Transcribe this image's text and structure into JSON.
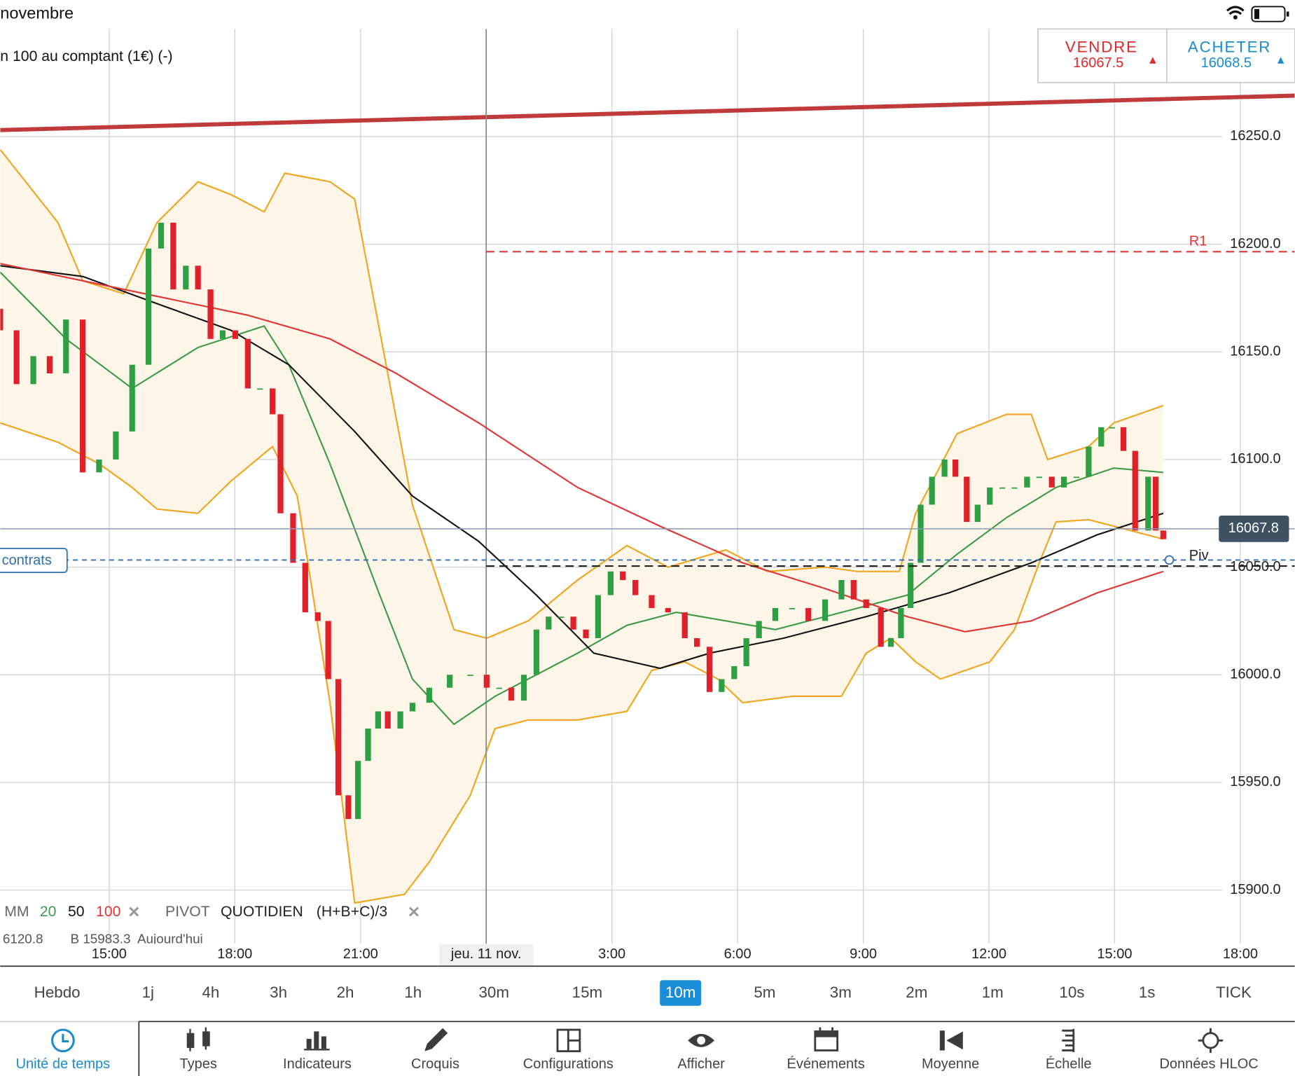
{
  "status_bar": {
    "title": "novembre"
  },
  "instrument": {
    "name": "n 100 au comptant (1€) (-)"
  },
  "trade": {
    "sell": {
      "label": "VENDRE",
      "price": "16067.5"
    },
    "buy": {
      "label": "ACHETER",
      "price": "16068.5"
    }
  },
  "chart_data": {
    "type": "candlestick",
    "up_color": "#2ea043",
    "down_color": "#e0202a",
    "grid": true,
    "xlim": [
      12.4,
      43.3
    ],
    "ylim": [
      15875,
      16300
    ],
    "xticks": [
      {
        "value": 15,
        "label": "15:00"
      },
      {
        "value": 18,
        "label": "18:00"
      },
      {
        "value": 21,
        "label": "21:00"
      },
      {
        "value": 24,
        "label": "jeu. 11 nov."
      },
      {
        "value": 27,
        "label": "3:00"
      },
      {
        "value": 30,
        "label": "6:00"
      },
      {
        "value": 33,
        "label": "9:00"
      },
      {
        "value": 36,
        "label": "12:00"
      },
      {
        "value": 39,
        "label": "15:00"
      },
      {
        "value": 42,
        "label": "18:00"
      }
    ],
    "yticks": [
      {
        "value": 15900,
        "label": "15900.0"
      },
      {
        "value": 15950,
        "label": "15950.0"
      },
      {
        "value": 16000,
        "label": "16000.0"
      },
      {
        "value": 16050,
        "label": "16050.0"
      },
      {
        "value": 16100,
        "label": "16100.0"
      },
      {
        "value": 16150,
        "label": "16150.0"
      },
      {
        "value": 16200,
        "label": "16200.0"
      },
      {
        "value": 16250,
        "label": "16250.0"
      }
    ],
    "x": [
      12.4,
      12.79,
      13.19,
      13.58,
      13.97,
      14.37,
      14.76,
      15.16,
      15.55,
      15.94,
      16.24,
      16.53,
      16.83,
      17.12,
      17.42,
      17.71,
      18.01,
      18.31,
      18.6,
      18.9,
      19.09,
      19.39,
      19.68,
      19.98,
      20.23,
      20.47,
      20.71,
      20.94,
      21.18,
      21.42,
      21.65,
      21.95,
      22.24,
      22.64,
      23.13,
      23.62,
      24.01,
      24.31,
      24.6,
      24.9,
      25.2,
      25.49,
      25.79,
      26.08,
      26.38,
      26.67,
      26.97,
      27.26,
      27.56,
      27.95,
      28.34,
      28.74,
      29.03,
      29.33,
      29.62,
      29.92,
      30.21,
      30.51,
      30.9,
      31.3,
      31.69,
      32.09,
      32.48,
      32.77,
      33.07,
      33.42,
      33.66,
      33.9,
      34.13,
      34.37,
      34.64,
      34.94,
      35.2,
      35.47,
      35.73,
      36.02,
      36.32,
      36.61,
      36.91,
      37.2,
      37.5,
      37.79,
      38.09,
      38.38,
      38.68,
      38.94,
      39.21,
      39.49,
      39.8,
      39.98,
      40.16
    ],
    "open": [
      16170,
      16160,
      16135,
      16148,
      16140,
      16165,
      16094,
      16100,
      16113,
      16144,
      16198,
      16210,
      16179,
      16190,
      16179,
      16156,
      16160,
      16156,
      16133,
      16133,
      16121,
      16075,
      16052,
      16029,
      16025,
      15998,
      15944,
      15933,
      15960,
      15975,
      15983,
      15975,
      15983,
      15987,
      15994,
      16000,
      16000,
      15994,
      15994,
      15988,
      16000,
      16021,
      16027,
      16027,
      16021,
      16017,
      16037,
      16048,
      16044,
      16037,
      16031,
      16029,
      16017,
      16013,
      15992,
      15998,
      16004,
      16017,
      16025,
      16031,
      16031,
      16025,
      16035,
      16044,
      16035,
      16031,
      16013,
      16017,
      16031,
      16052,
      16079,
      16092,
      16100,
      16092,
      16071,
      16079,
      16087,
      16087,
      16087,
      16092,
      16092,
      16087,
      16092,
      16092,
      16106,
      16115,
      16115,
      16104,
      16067,
      16092,
      16067
    ],
    "close": [
      16160,
      16135,
      16148,
      16140,
      16165,
      16094,
      16100,
      16113,
      16144,
      16198,
      16210,
      16179,
      16190,
      16179,
      16156,
      16160,
      16156,
      16133,
      16133,
      16121,
      16075,
      16052,
      16029,
      16025,
      15998,
      15944,
      15933,
      15960,
      15975,
      15983,
      15975,
      15983,
      15987,
      15994,
      16000,
      16000,
      15994,
      15994,
      15988,
      16000,
      16021,
      16027,
      16027,
      16021,
      16017,
      16037,
      16048,
      16044,
      16037,
      16031,
      16029,
      16017,
      16013,
      15992,
      15998,
      16004,
      16017,
      16025,
      16031,
      16031,
      16025,
      16035,
      16044,
      16035,
      16031,
      16013,
      16017,
      16031,
      16052,
      16079,
      16092,
      16100,
      16092,
      16071,
      16079,
      16087,
      16087,
      16087,
      16092,
      16092,
      16087,
      16092,
      16092,
      16106,
      16115,
      16115,
      16104,
      16067,
      16092,
      16067,
      16063
    ],
    "series": [
      {
        "name": "20",
        "color": "#3d9a4a",
        "x": [
          12.4,
          13.97,
          15.55,
          17.12,
          18.7,
          19.29,
          20.27,
          21.46,
          22.24,
          23.23,
          24.21,
          25.2,
          26.18,
          27.36,
          28.54,
          29.72,
          30.9,
          32.09,
          33.27,
          34.05,
          35.24,
          36.42,
          37.6,
          38.98,
          40.16
        ],
        "values": [
          16187,
          16156,
          16133,
          16152,
          16162,
          16144,
          16098,
          16037,
          15998,
          15977,
          15990,
          16000,
          16010,
          16023,
          16029,
          16025,
          16021,
          16027,
          16033,
          16037,
          16056,
          16073,
          16087,
          16096,
          16094
        ]
      },
      {
        "name": "50",
        "color": "#111111",
        "x": [
          12.4,
          14.37,
          16.34,
          17.91,
          19.29,
          20.86,
          22.24,
          23.82,
          25.2,
          26.57,
          28.15,
          29.33,
          31.1,
          33.07,
          35.04,
          37.01,
          38.58,
          40.16
        ],
        "values": [
          16190,
          16185,
          16171,
          16160,
          16144,
          16113,
          16083,
          16062,
          16037,
          16010,
          16003,
          16010,
          16017,
          16027,
          16038,
          16052,
          16065,
          16075
        ]
      },
      {
        "name": "100",
        "color": "#e03535",
        "x": [
          12.4,
          14.37,
          16.34,
          18.31,
          20.27,
          21.85,
          23.82,
          26.18,
          28.15,
          30.12,
          32.09,
          34.05,
          35.43,
          37.01,
          38.58,
          40.16
        ],
        "values": [
          16191,
          16183,
          16175,
          16167,
          16156,
          16140,
          16117,
          16087,
          16069,
          16052,
          16040,
          16027,
          16020,
          16025,
          16038,
          16048
        ]
      }
    ],
    "bands": {
      "color": "#f0a51c",
      "fill": "#fdf5e8",
      "upper": {
        "x": [
          12.4,
          13.78,
          14.37,
          15.35,
          16.14,
          17.12,
          17.91,
          18.7,
          19.19,
          20.27,
          20.86,
          21.65,
          22.24,
          23.23,
          24.01,
          25,
          26.18,
          27.36,
          28.34,
          29.72,
          30.71,
          32.09,
          32.87,
          33.86,
          34.25,
          35.24,
          36.42,
          37.01,
          37.4,
          38.38,
          38.98,
          40.16
        ],
        "values": [
          16244,
          16210,
          16183,
          16177,
          16210,
          16229,
          16223,
          16215,
          16233,
          16229,
          16221,
          16140,
          16079,
          16021,
          16017,
          16025,
          16044,
          16060,
          16050,
          16058,
          16048,
          16050,
          16048,
          16048,
          16075,
          16112,
          16121,
          16121,
          16100,
          16106,
          16117,
          16125
        ]
      },
      "lower": {
        "x": [
          12.4,
          13.78,
          14.76,
          15.55,
          16.14,
          17.12,
          17.91,
          18.9,
          19.49,
          20.27,
          20.86,
          22.05,
          22.64,
          23.62,
          24.21,
          25,
          26.18,
          27.36,
          27.95,
          28.74,
          29.53,
          30.12,
          31.3,
          32.48,
          33.07,
          33.66,
          34.25,
          34.84,
          36.02,
          36.61,
          37.2,
          37.6,
          38.38,
          38.98,
          40.16
        ],
        "values": [
          16117,
          16108,
          16098,
          16087,
          16077,
          16075,
          16090,
          16106,
          16083,
          15987,
          15894,
          15898,
          15913,
          15944,
          15975,
          15979,
          15979,
          15983,
          16002,
          16006,
          15998,
          15987,
          15990,
          15990,
          16010,
          16017,
          16006,
          15998,
          16006,
          16021,
          16052,
          16071,
          16072,
          16069,
          16063
        ]
      }
    },
    "trendline": {
      "color": "#c0393b",
      "x": [
        12.4,
        43.3
      ],
      "values": [
        16253,
        16269
      ]
    },
    "levels": [
      {
        "label": "R1",
        "value": 16196.5,
        "color": "#e03535",
        "from": 24
      },
      {
        "label": "Piv",
        "value": 16050.5,
        "color": "#222222",
        "from": 24
      }
    ],
    "position": {
      "label": "contrats",
      "value": 16053.3,
      "color": "#2f6fad"
    },
    "last_price": {
      "value": 16067.8,
      "color": "#3f5263"
    },
    "legend": {
      "ma_label": "MM",
      "pivot": [
        "PIVOT",
        "QUOTIDIEN",
        "(H+B+C)/3"
      ],
      "sub": [
        "6120.8",
        "B 15983.3",
        "Aujourd'hui"
      ]
    }
  },
  "timeframes": {
    "items": [
      "Hebdo",
      "1j",
      "4h",
      "3h",
      "2h",
      "1h",
      "30m",
      "15m",
      "10m",
      "5m",
      "3m",
      "2m",
      "1m",
      "10s",
      "1s",
      "TICK"
    ],
    "selected": 8
  },
  "toolbar": {
    "items": [
      "Unité de temps",
      "Types",
      "Indicateurs",
      "Croquis",
      "Configurations",
      "Afficher",
      "Événements",
      "Moyenne",
      "Échelle",
      "Données HLOC"
    ],
    "selected": 0
  }
}
